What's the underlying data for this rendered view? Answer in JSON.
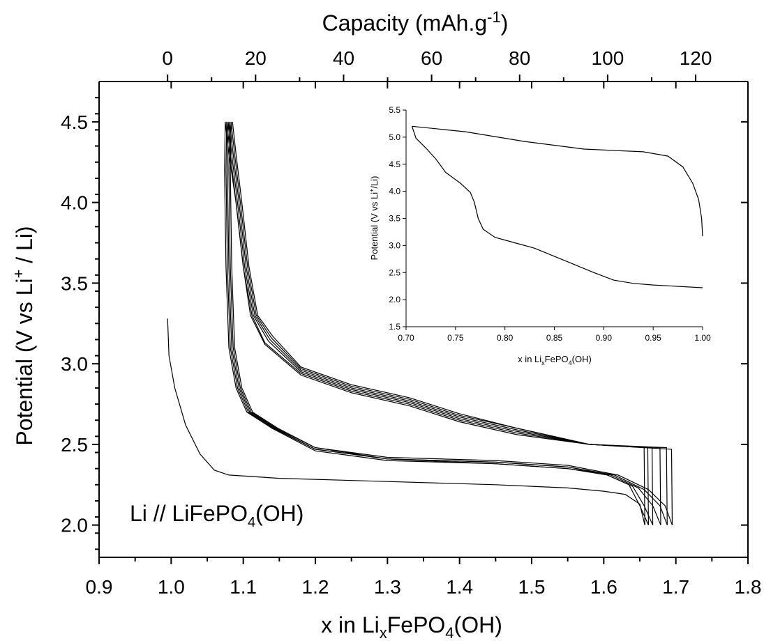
{
  "chart_data": {
    "type": "line",
    "main": {
      "xlabel": {
        "prefix": "x in Li",
        "sub": "x",
        "mid": "FePO",
        "sub2": "4",
        "suffix": "(OH)"
      },
      "x2label": {
        "prefix": "Capacity (mAh.g",
        "sup": "-1",
        "suffix": ")"
      },
      "ylabel": {
        "prefix": "Potential (V vs Li",
        "sup": "+",
        "suffix": " / Li)"
      },
      "xlim": [
        0.9,
        1.8
      ],
      "ylim": [
        1.8,
        4.75
      ],
      "x2_map": {
        "x_at_zero": 0.995,
        "x_per_unit": 0.006104
      },
      "xticks": [
        "0.9",
        "1.0",
        "1.1",
        "1.2",
        "1.3",
        "1.4",
        "1.5",
        "1.6",
        "1.7",
        "1.8"
      ],
      "yticks": [
        "2.0",
        "2.5",
        "3.0",
        "3.5",
        "4.0",
        "4.5"
      ],
      "x2ticks": [
        "0",
        "20",
        "40",
        "60",
        "80",
        "100",
        "120"
      ],
      "annotation": {
        "prefix": "Li // LiFePO",
        "sub": "4",
        "suffix": "(OH)"
      },
      "series": [
        {
          "values": [
            [
              0.995,
              3.28
            ],
            [
              0.997,
              3.05
            ],
            [
              1.005,
              2.85
            ],
            [
              1.02,
              2.62
            ],
            [
              1.04,
              2.44
            ],
            [
              1.06,
              2.34
            ],
            [
              1.08,
              2.31
            ],
            [
              1.15,
              2.29
            ],
            [
              1.3,
              2.27
            ],
            [
              1.45,
              2.25
            ],
            [
              1.55,
              2.23
            ],
            [
              1.6,
              2.21
            ],
            [
              1.63,
              2.19
            ],
            [
              1.65,
              2.13
            ],
            [
              1.657,
              2.0
            ]
          ]
        },
        {
          "values": [
            [
              1.657,
              2.0
            ],
            [
              1.656,
              2.48
            ],
            [
              1.58,
              2.5
            ],
            [
              1.48,
              2.56
            ],
            [
              1.4,
              2.64
            ],
            [
              1.33,
              2.74
            ],
            [
              1.25,
              2.82
            ],
            [
              1.18,
              2.93
            ],
            [
              1.13,
              3.12
            ],
            [
              1.11,
              3.3
            ],
            [
              1.1,
              3.6
            ],
            [
              1.09,
              4.0
            ],
            [
              1.08,
              4.3
            ],
            [
              1.075,
              4.5
            ]
          ]
        },
        {
          "values": [
            [
              1.075,
              4.5
            ],
            [
              1.074,
              4.2
            ],
            [
              1.076,
              3.6
            ],
            [
              1.08,
              3.1
            ],
            [
              1.09,
              2.85
            ],
            [
              1.105,
              2.7
            ],
            [
              1.14,
              2.6
            ],
            [
              1.2,
              2.46
            ],
            [
              1.3,
              2.4
            ],
            [
              1.45,
              2.38
            ],
            [
              1.55,
              2.35
            ],
            [
              1.6,
              2.32
            ],
            [
              1.635,
              2.25
            ],
            [
              1.65,
              2.12
            ],
            [
              1.662,
              2.0
            ]
          ]
        },
        {
          "values": [
            [
              1.662,
              2.0
            ],
            [
              1.661,
              2.48
            ],
            [
              1.58,
              2.5
            ],
            [
              1.48,
              2.57
            ],
            [
              1.4,
              2.65
            ],
            [
              1.33,
              2.75
            ],
            [
              1.25,
              2.83
            ],
            [
              1.18,
              2.94
            ],
            [
              1.13,
              3.13
            ],
            [
              1.112,
              3.3
            ],
            [
              1.1,
              3.6
            ],
            [
              1.09,
              4.0
            ],
            [
              1.082,
              4.3
            ],
            [
              1.077,
              4.5
            ]
          ]
        },
        {
          "values": [
            [
              1.077,
              4.5
            ],
            [
              1.076,
              4.2
            ],
            [
              1.078,
              3.6
            ],
            [
              1.082,
              3.1
            ],
            [
              1.092,
              2.85
            ],
            [
              1.107,
              2.7
            ],
            [
              1.142,
              2.6
            ],
            [
              1.2,
              2.47
            ],
            [
              1.3,
              2.41
            ],
            [
              1.45,
              2.38
            ],
            [
              1.55,
              2.35
            ],
            [
              1.605,
              2.31
            ],
            [
              1.64,
              2.24
            ],
            [
              1.656,
              2.12
            ],
            [
              1.668,
              2.0
            ]
          ]
        },
        {
          "values": [
            [
              1.668,
              2.0
            ],
            [
              1.667,
              2.48
            ],
            [
              1.58,
              2.5
            ],
            [
              1.48,
              2.58
            ],
            [
              1.4,
              2.66
            ],
            [
              1.33,
              2.76
            ],
            [
              1.25,
              2.84
            ],
            [
              1.18,
              2.95
            ],
            [
              1.135,
              3.14
            ],
            [
              1.114,
              3.3
            ],
            [
              1.102,
              3.6
            ],
            [
              1.092,
              4.0
            ],
            [
              1.084,
              4.3
            ],
            [
              1.079,
              4.5
            ]
          ]
        },
        {
          "values": [
            [
              1.079,
              4.5
            ],
            [
              1.078,
              4.2
            ],
            [
              1.08,
              3.6
            ],
            [
              1.084,
              3.1
            ],
            [
              1.094,
              2.85
            ],
            [
              1.109,
              2.7
            ],
            [
              1.144,
              2.6
            ],
            [
              1.2,
              2.47
            ],
            [
              1.3,
              2.41
            ],
            [
              1.45,
              2.39
            ],
            [
              1.55,
              2.36
            ],
            [
              1.61,
              2.31
            ],
            [
              1.648,
              2.23
            ],
            [
              1.668,
              2.12
            ],
            [
              1.679,
              2.0
            ]
          ]
        },
        {
          "values": [
            [
              1.679,
              2.0
            ],
            [
              1.678,
              2.48
            ],
            [
              1.58,
              2.5
            ],
            [
              1.48,
              2.59
            ],
            [
              1.4,
              2.67
            ],
            [
              1.33,
              2.77
            ],
            [
              1.25,
              2.85
            ],
            [
              1.18,
              2.96
            ],
            [
              1.137,
              3.15
            ],
            [
              1.116,
              3.3
            ],
            [
              1.104,
              3.6
            ],
            [
              1.094,
              4.0
            ],
            [
              1.086,
              4.3
            ],
            [
              1.081,
              4.5
            ]
          ]
        },
        {
          "values": [
            [
              1.081,
              4.5
            ],
            [
              1.08,
              4.2
            ],
            [
              1.082,
              3.6
            ],
            [
              1.086,
              3.1
            ],
            [
              1.096,
              2.85
            ],
            [
              1.111,
              2.7
            ],
            [
              1.146,
              2.6
            ],
            [
              1.2,
              2.48
            ],
            [
              1.3,
              2.41
            ],
            [
              1.45,
              2.39
            ],
            [
              1.55,
              2.36
            ],
            [
              1.615,
              2.31
            ],
            [
              1.656,
              2.22
            ],
            [
              1.678,
              2.12
            ],
            [
              1.688,
              2.0
            ]
          ]
        },
        {
          "values": [
            [
              1.688,
              2.0
            ],
            [
              1.687,
              2.48
            ],
            [
              1.58,
              2.5
            ],
            [
              1.48,
              2.6
            ],
            [
              1.4,
              2.68
            ],
            [
              1.33,
              2.78
            ],
            [
              1.25,
              2.86
            ],
            [
              1.18,
              2.97
            ],
            [
              1.139,
              3.16
            ],
            [
              1.118,
              3.3
            ],
            [
              1.106,
              3.6
            ],
            [
              1.096,
              4.0
            ],
            [
              1.088,
              4.3
            ],
            [
              1.083,
              4.5
            ]
          ]
        },
        {
          "values": [
            [
              1.083,
              4.5
            ],
            [
              1.082,
              4.2
            ],
            [
              1.084,
              3.6
            ],
            [
              1.088,
              3.1
            ],
            [
              1.098,
              2.85
            ],
            [
              1.113,
              2.7
            ],
            [
              1.148,
              2.6
            ],
            [
              1.2,
              2.48
            ],
            [
              1.3,
              2.42
            ],
            [
              1.45,
              2.4
            ],
            [
              1.55,
              2.37
            ],
            [
              1.62,
              2.31
            ],
            [
              1.662,
              2.22
            ],
            [
              1.685,
              2.12
            ],
            [
              1.695,
              2.0
            ]
          ]
        },
        {
          "values": [
            [
              1.695,
              2.0
            ],
            [
              1.694,
              2.47
            ],
            [
              1.58,
              2.5
            ],
            [
              1.48,
              2.6
            ],
            [
              1.4,
              2.69
            ],
            [
              1.33,
              2.79
            ],
            [
              1.25,
              2.87
            ],
            [
              1.18,
              2.98
            ],
            [
              1.141,
              3.17
            ],
            [
              1.12,
              3.3
            ],
            [
              1.108,
              3.6
            ],
            [
              1.098,
              4.0
            ],
            [
              1.09,
              4.3
            ],
            [
              1.085,
              4.5
            ]
          ]
        }
      ]
    },
    "inset": {
      "xlabel": {
        "prefix": "x in Li",
        "sub": "x",
        "mid": "FePO",
        "sub2": "4",
        "suffix": "(OH)"
      },
      "ylabel": {
        "prefix": "Potential (V vs Li",
        "sup": "+",
        "suffix": "/Li)"
      },
      "xlim": [
        0.7,
        1.0
      ],
      "ylim": [
        1.5,
        5.5
      ],
      "xticks": [
        "0.70",
        "0.75",
        "0.80",
        "0.85",
        "0.90",
        "0.95",
        "1.00"
      ],
      "yticks": [
        "1.5",
        "2.0",
        "2.5",
        "3.0",
        "3.5",
        "4.0",
        "4.5",
        "5.0",
        "5.5"
      ],
      "series": [
        {
          "values": [
            [
              1.0,
              2.22
            ],
            [
              0.97,
              2.25
            ],
            [
              0.95,
              2.27
            ],
            [
              0.93,
              2.3
            ],
            [
              0.91,
              2.36
            ],
            [
              0.89,
              2.5
            ],
            [
              0.87,
              2.65
            ],
            [
              0.85,
              2.8
            ],
            [
              0.83,
              2.95
            ],
            [
              0.81,
              3.05
            ],
            [
              0.79,
              3.15
            ],
            [
              0.778,
              3.3
            ],
            [
              0.773,
              3.5
            ],
            [
              0.769,
              3.8
            ],
            [
              0.765,
              3.98
            ],
            [
              0.755,
              4.15
            ],
            [
              0.74,
              4.35
            ],
            [
              0.73,
              4.6
            ],
            [
              0.72,
              4.8
            ],
            [
              0.71,
              4.98
            ],
            [
              0.706,
              5.2
            ]
          ]
        },
        {
          "values": [
            [
              0.706,
              5.2
            ],
            [
              0.76,
              5.1
            ],
            [
              0.82,
              4.92
            ],
            [
              0.88,
              4.78
            ],
            [
              0.94,
              4.73
            ],
            [
              0.965,
              4.65
            ],
            [
              0.98,
              4.45
            ],
            [
              0.99,
              4.15
            ],
            [
              0.996,
              3.85
            ],
            [
              0.999,
              3.5
            ],
            [
              1.0,
              3.17
            ]
          ]
        }
      ]
    }
  }
}
